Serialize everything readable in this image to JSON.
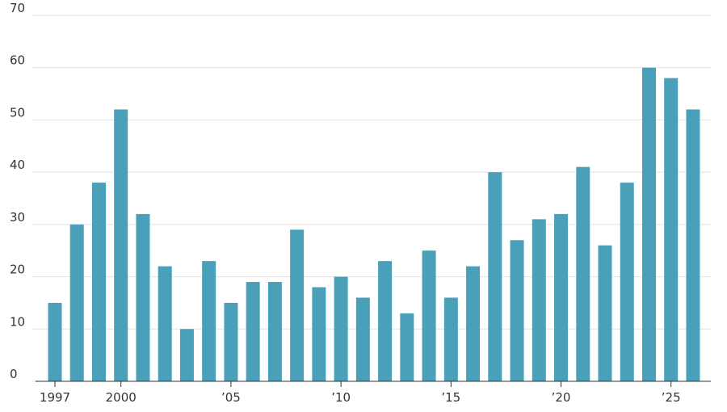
{
  "chart_data": {
    "type": "bar",
    "categories": [
      "1997",
      null,
      null,
      "2000",
      null,
      null,
      null,
      null,
      "’05",
      null,
      null,
      null,
      null,
      "’10",
      null,
      null,
      null,
      null,
      "’15",
      null,
      null,
      null,
      null,
      "’20",
      null,
      null,
      null,
      null,
      "’25",
      null
    ],
    "values": [
      15,
      30,
      38,
      52,
      32,
      22,
      10,
      23,
      15,
      19,
      19,
      29,
      18,
      20,
      16,
      23,
      13,
      25,
      16,
      22,
      40,
      27,
      31,
      32,
      41,
      26,
      38,
      60,
      58,
      52
    ],
    "color": "#4aa0b8",
    "ylim": [
      0,
      70
    ],
    "yticks": [
      0,
      10,
      20,
      30,
      40,
      50,
      60,
      70
    ],
    "grid": true
  }
}
